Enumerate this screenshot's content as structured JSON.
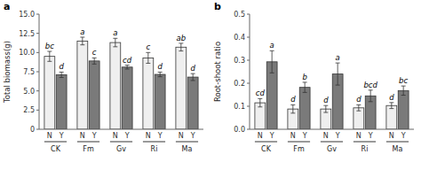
{
  "chart_data": [
    {
      "type": "bar",
      "title": "a",
      "y_label": "Total biomass(g)",
      "categories": [
        "CK",
        "Fm",
        "Gv",
        "Ri",
        "Ma"
      ],
      "series": [
        {
          "name": "N",
          "color": "#efefef",
          "values": [
            9.5,
            11.5,
            11.3,
            9.3,
            10.7
          ],
          "errors": [
            0.65,
            0.5,
            0.55,
            0.7,
            0.5
          ],
          "annotations": [
            "bc",
            "a",
            "a",
            "c",
            "ab"
          ]
        },
        {
          "name": "Y",
          "color": "#7a7a7a",
          "values": [
            7.1,
            8.9,
            8.1,
            7.15,
            6.8
          ],
          "errors": [
            0.35,
            0.4,
            0.25,
            0.3,
            0.45
          ],
          "annotations": [
            "d",
            "c",
            "cd",
            "d",
            "d"
          ]
        }
      ],
      "ylim": [
        0,
        15.0
      ],
      "yticks": [
        0,
        2.5,
        {
          "value": 5.0,
          "label": "5.0"
        },
        {
          "value": 7.5,
          "label": "7.5"
        },
        {
          "value": 10.0,
          "label": "10.0"
        },
        {
          "value": 12.5,
          "label": "12.5"
        },
        {
          "value": 15.0,
          "label": "15.0"
        }
      ],
      "grid": false
    },
    {
      "type": "bar",
      "title": "b",
      "y_label": "Root-shoot ratio",
      "categories": [
        "CK",
        "Fm",
        "Gv",
        "Ri",
        "Ma"
      ],
      "series": [
        {
          "name": "N",
          "color": "#efefef",
          "values": [
            0.115,
            0.088,
            0.088,
            0.093,
            0.103
          ],
          "errors": [
            0.018,
            0.018,
            0.015,
            0.013,
            0.013
          ],
          "annotations": [
            "cd",
            "d",
            "d",
            "d",
            "d"
          ]
        },
        {
          "name": "Y",
          "color": "#7a7a7a",
          "values": [
            0.293,
            0.182,
            0.24,
            0.145,
            0.168
          ],
          "errors": [
            0.048,
            0.022,
            0.048,
            0.025,
            0.02
          ],
          "annotations": [
            "a",
            "b",
            "a",
            "bcd",
            "bc"
          ]
        }
      ],
      "ylim": [
        0,
        0.5
      ],
      "yticks": [
        {
          "value": 0.0,
          "label": "0.0"
        },
        0.1,
        0.2,
        0.3,
        0.4,
        0.5
      ],
      "grid": false
    }
  ]
}
